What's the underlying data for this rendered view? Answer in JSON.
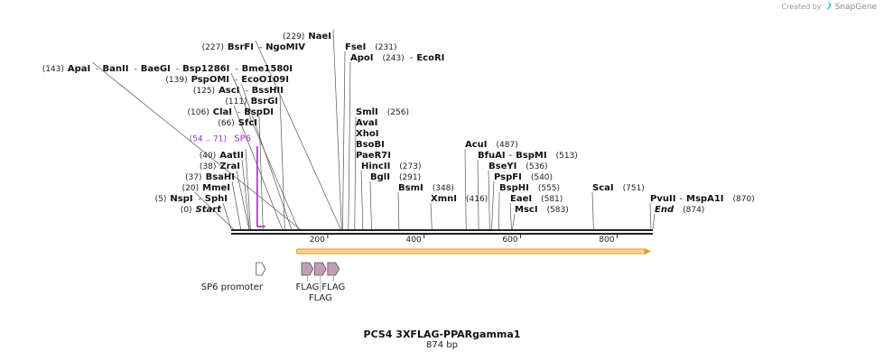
{
  "credit": {
    "prefix": "Created by",
    "brand": "SnapGene"
  },
  "plasmid": {
    "name": "PCS4 3XFLAG-PPARgamma1",
    "length_label": "874 bp",
    "length": 874
  },
  "colors": {
    "enzyme_text": "#111111",
    "coord_text": "#222222",
    "primer": "#9b30c8",
    "orf_fill": "#f6d49a",
    "orf_stroke": "#e09a20",
    "feature_fill": "#c49cb4",
    "feature_stroke": "#555555",
    "backbone": "#222222"
  },
  "sites": [
    {
      "row": 0,
      "prefix": "(0)",
      "label": "Start",
      "italic": true,
      "bp": 0
    },
    {
      "row": 1,
      "prefix": "(5)",
      "label": "NspI",
      "bp": 5
    },
    {
      "row": 1,
      "prefix": "-",
      "label": "SphI"
    },
    {
      "row": 2,
      "prefix": "(20)",
      "label": "MmeI",
      "bp": 20
    },
    {
      "row": 3,
      "prefix": "(37)",
      "label": "BsaHI",
      "bp": 37
    },
    {
      "row": 4,
      "prefix": "(38)",
      "label": "ZraI",
      "bp": 38
    },
    {
      "row": 5,
      "prefix": "(40)",
      "label": "AatII",
      "bp": 40
    },
    {
      "row": 8,
      "prefix": "(66)",
      "label": "SfcI",
      "bp": 66
    },
    {
      "row": 9,
      "prefix": "(106)",
      "label": "ClaI",
      "bp": 106
    },
    {
      "row": 9,
      "prefix": "-",
      "label": "BspDI"
    },
    {
      "row": 10,
      "prefix": "(111)",
      "label": "BsrGI",
      "bp": 111
    },
    {
      "row": 11,
      "prefix": "(125)",
      "label": "AscI",
      "bp": 125
    },
    {
      "row": 11,
      "prefix": "-",
      "label": "BssHII"
    },
    {
      "row": 12,
      "prefix": "(139)",
      "label": "PspOMI",
      "bp": 139
    },
    {
      "row": 12,
      "prefix": "-",
      "label": "EcoO109I"
    },
    {
      "row": 13,
      "prefix": "(143)",
      "label": "ApaI",
      "bp": 143
    },
    {
      "row": 13,
      "prefix": "-",
      "label": "BanII"
    },
    {
      "row": 13,
      "prefix": "-",
      "label": "BaeGI"
    },
    {
      "row": 13,
      "prefix": "-",
      "label": "Bsp1286I"
    },
    {
      "row": 13,
      "prefix": "-",
      "label": "Bme1580I"
    },
    {
      "row": 15,
      "prefix": "(227)",
      "label": "BsrFI",
      "bp": 227
    },
    {
      "row": 15,
      "prefix": "-",
      "label": "NgoMIV"
    },
    {
      "row": 16,
      "prefix": "(229)",
      "label": "NaeI",
      "bp": 229
    },
    {
      "row": 15,
      "side": "right",
      "label": "FseI",
      "suffix": "(231)",
      "bp": 231
    },
    {
      "row": 14,
      "side": "right",
      "label": "ApoI",
      "suffix": "(243)",
      "bp": 243
    },
    {
      "row": 14,
      "side": "right",
      "label": "-",
      "plain": true
    },
    {
      "row": 14,
      "side": "right",
      "label": "EcoRI"
    },
    {
      "row": 9,
      "side": "right",
      "label": "SmlI",
      "suffix": "(256)",
      "bp": 256
    },
    {
      "row": 8,
      "side": "right",
      "label": "AvaI"
    },
    {
      "row": 7,
      "side": "right",
      "label": "XhoI"
    },
    {
      "row": 6,
      "side": "right",
      "label": "BsoBI"
    },
    {
      "row": 5,
      "side": "right",
      "label": "PaeR7I"
    },
    {
      "row": 4,
      "side": "right",
      "label": "HincII",
      "suffix": "(273)",
      "bp": 273
    },
    {
      "row": 3,
      "side": "right",
      "label": "BglI",
      "suffix": "(291)",
      "bp": 291
    },
    {
      "row": 2,
      "side": "right",
      "label": "BsmI",
      "suffix": "(348)",
      "bp": 348
    },
    {
      "row": 1,
      "side": "right",
      "label": "XmnI",
      "suffix": "(416)",
      "bp": 416
    },
    {
      "row": 6,
      "side": "right",
      "label": "AcuI",
      "suffix": "(487)",
      "bp": 487
    },
    {
      "row": 5,
      "side": "right",
      "label": "BfuAI",
      "bp": 513
    },
    {
      "row": 5,
      "side": "right",
      "label": "-",
      "plain": true
    },
    {
      "row": 5,
      "side": "right",
      "label": "BspMI",
      "suffix": "(513)"
    },
    {
      "row": 4,
      "side": "right",
      "label": "BseYI",
      "suffix": "(536)",
      "bp": 536
    },
    {
      "row": 3,
      "side": "right",
      "label": "PspFI",
      "suffix": "(540)",
      "bp": 540
    },
    {
      "row": 2,
      "side": "right",
      "label": "BspHI",
      "suffix": "(555)",
      "bp": 555
    },
    {
      "row": 1,
      "side": "right",
      "label": "EaeI",
      "suffix": "(581)",
      "bp": 581
    },
    {
      "row": 0,
      "side": "right",
      "label": "MscI",
      "suffix": "(583)",
      "bp": 583
    },
    {
      "row": 2,
      "side": "right",
      "label": "ScaI",
      "suffix": "(751)",
      "bp": 751
    },
    {
      "row": 1,
      "side": "right",
      "label": "PvuII",
      "bp": 870
    },
    {
      "row": 1,
      "side": "right",
      "label": "-",
      "plain": true
    },
    {
      "row": 1,
      "side": "right",
      "label": "MspA1I",
      "suffix": "(870)"
    },
    {
      "row": 0,
      "side": "right",
      "label": "End",
      "italic": true,
      "suffix": "(874)",
      "bp": 874
    }
  ],
  "primer": {
    "name": "SP6",
    "range": "(54 .. 71)",
    "start": 54,
    "end": 71
  },
  "ticks": [
    200,
    400,
    600,
    800
  ],
  "orf": {
    "start": 136,
    "end": 870
  },
  "features": [
    {
      "label": "SP6 promoter",
      "start": 52,
      "end": 71,
      "kind": "promoter"
    },
    {
      "label": "FLAG",
      "start": 146,
      "end": 170,
      "kind": "tag"
    },
    {
      "label": "FLAG",
      "start": 173,
      "end": 197,
      "kind": "tag"
    },
    {
      "label": "FLAG",
      "start": 200,
      "end": 224,
      "kind": "tag"
    }
  ]
}
